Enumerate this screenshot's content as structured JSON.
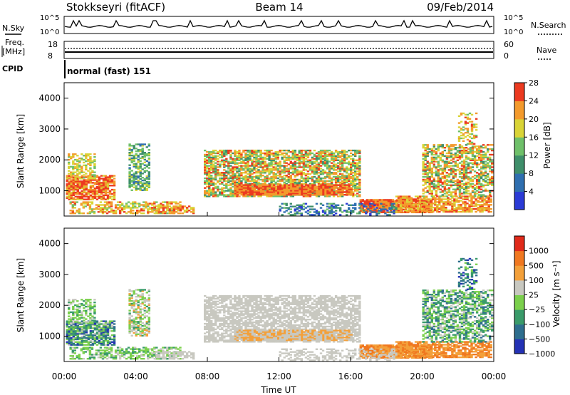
{
  "header": {
    "title": "Stokkseyri (fitACF)",
    "beam": "Beam 14",
    "date": "09/Feb/2014"
  },
  "status_panels": {
    "nsky_label": "N.Sky",
    "nsearch_label": "N.Search",
    "left_ticks": [
      "10^5",
      "10^0"
    ],
    "right_ticks": [
      "10^5",
      "10^0"
    ],
    "freq_label_line1": "Freq.",
    "freq_label_line2": "[MHz]",
    "freq_ticks": [
      "18",
      "8"
    ],
    "nave_label": "Nave",
    "nave_ticks": [
      "60",
      "0"
    ],
    "cpid_label": "CPID",
    "cpid_value": "normal (fast) 151"
  },
  "chart_data": [
    {
      "type": "heatmap",
      "name": "power",
      "ylabel": "Slant Range [km]",
      "xlabel": "",
      "ylim": [
        180,
        4500
      ],
      "yticks": [
        "1000",
        "2000",
        "3000",
        "4000"
      ],
      "xlim": [
        0,
        24
      ],
      "colorbar_label": "Power [dB]",
      "colorbar_ticks": [
        "4",
        "8",
        "12",
        "16",
        "20",
        "24",
        "28"
      ],
      "colors": [
        "#2b3bd6",
        "#2f6fb0",
        "#3f8f6b",
        "#6fc06a",
        "#d9d437",
        "#f39a2c",
        "#ec3a20"
      ]
    },
    {
      "type": "heatmap",
      "name": "velocity",
      "ylabel": "Slant Range [km]",
      "xlabel": "Time UT",
      "ylim": [
        180,
        4500
      ],
      "yticks": [
        "1000",
        "2000",
        "3000",
        "4000"
      ],
      "xlim": [
        0,
        24
      ],
      "xticks": [
        "00:00",
        "04:00",
        "08:00",
        "12:00",
        "16:00",
        "20:00",
        "00:00"
      ],
      "colorbar_label": "Velocity [m s⁻¹]",
      "colorbar_ticks": [
        "1000",
        "500",
        "100",
        "25",
        "−25",
        "−100",
        "−500",
        "−1000"
      ],
      "colors": [
        "#2432b5",
        "#2e6e8e",
        "#3a9b6a",
        "#7bd04c",
        "#c8c8c0",
        "#f3a03a",
        "#f07820",
        "#e02a1a"
      ]
    }
  ]
}
